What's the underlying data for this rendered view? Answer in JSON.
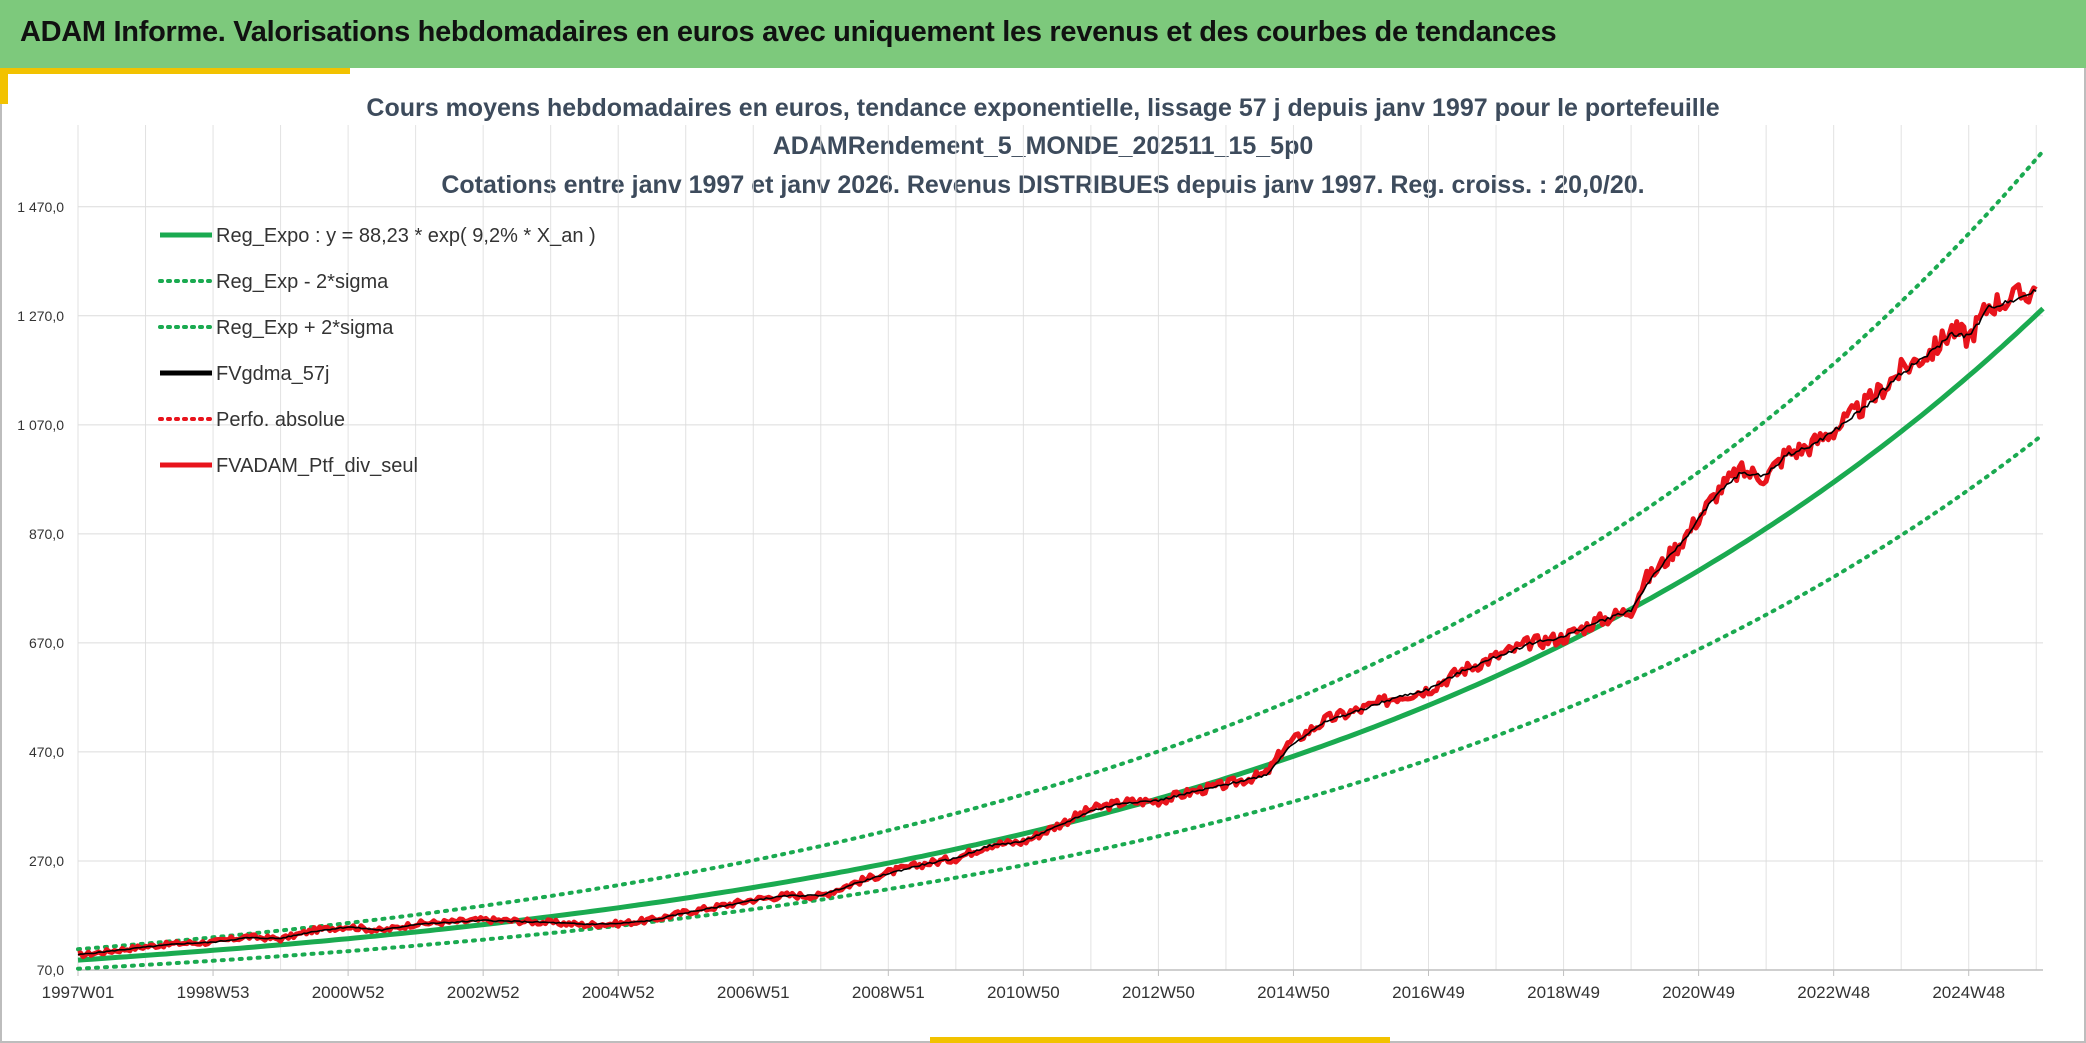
{
  "banner": {
    "title": "ADAM Informe. Valorisations hebdomadaires en euros avec uniquement les revenus et des courbes de tendances"
  },
  "colors": {
    "banner_bg": "#7dc97c",
    "accent": "#f2c200",
    "reg": "#1aaa50",
    "perf": "#e8141c",
    "gdma": "#000000",
    "title": "#3d4b5c"
  },
  "chart_data": {
    "type": "line",
    "title_lines": [
      "Cours moyens hebdomadaires en euros, tendance exponentielle, lissage 57 j depuis janv 1997 pour le portefeuille",
      "ADAMRendement_5_MONDE_202511_15_5p0",
      "Cotations entre janv 1997 et janv 2026. Revenus DISTRIBUES depuis janv 1997. Reg. croiss. : 20,0/20."
    ],
    "xlabel": "",
    "ylabel": "",
    "ylim": [
      70,
      1620
    ],
    "xlim": [
      1997.0,
      2026.1
    ],
    "y_ticks": [
      70,
      270,
      470,
      670,
      870,
      1070,
      1270,
      1470
    ],
    "y_tick_labels": [
      "70,0",
      "270,0",
      "470,0",
      "670,0",
      "870,0",
      "1 070,0",
      "1 270,0",
      "1 470,0"
    ],
    "x_ticks": [
      1997.0,
      1999.0,
      2001.0,
      2003.0,
      2005.0,
      2007.0,
      2009.0,
      2011.0,
      2013.0,
      2015.0,
      2017.0,
      2019.0,
      2021.0,
      2023.0,
      2025.0
    ],
    "x_tick_labels": [
      "1997W01",
      "1998W53",
      "2000W52",
      "2002W52",
      "2004W52",
      "2006W51",
      "2008W51",
      "2010W50",
      "2012W50",
      "2014W50",
      "2016W49",
      "2018W49",
      "2020W49",
      "2022W48",
      "2024W48"
    ],
    "legend": [
      {
        "label": "Reg_Expo : y = 88,23 * exp( 9,2% *  X_an )",
        "style": "solid",
        "color": "#1aaa50"
      },
      {
        "label": "Reg_Exp - 2*sigma",
        "style": "dotted",
        "color": "#1aaa50"
      },
      {
        "label": "Reg_Exp + 2*sigma",
        "style": "dotted",
        "color": "#1aaa50"
      },
      {
        "label": "FVgdma_57j",
        "style": "solid",
        "color": "#000000"
      },
      {
        "label": "Perfo. absolue",
        "style": "dotted",
        "color": "#e8141c"
      },
      {
        "label": "FVADAM_Ptf_div_seul",
        "style": "solid",
        "color": "#e8141c"
      }
    ],
    "regression": {
      "a": 88.23,
      "rate": 0.092
    },
    "band": {
      "lower_factor": 0.82,
      "upper_factor": 1.225
    },
    "series": [
      {
        "name": "FVADAM_Ptf_div_seul",
        "x": [
          1997.0,
          1998.0,
          1998.5,
          1999.0,
          1999.5,
          2000.0,
          2000.5,
          2001.0,
          2001.5,
          2002.0,
          2002.5,
          2003.0,
          2003.5,
          2004.0,
          2004.5,
          2005.0,
          2005.5,
          2006.0,
          2006.5,
          2007.0,
          2007.5,
          2008.0,
          2008.5,
          2009.0,
          2009.5,
          2010.0,
          2010.5,
          2011.0,
          2011.5,
          2012.0,
          2012.5,
          2013.0,
          2013.5,
          2014.0,
          2014.6,
          2014.85,
          2014.95,
          2015.5,
          2016.0,
          2016.5,
          2017.0,
          2017.5,
          2018.0,
          2018.5,
          2019.0,
          2019.5,
          2020.0,
          2020.2,
          2020.3,
          2020.5,
          2020.8,
          2021.0,
          2021.3,
          2021.6,
          2022.0,
          2022.3,
          2022.6,
          2023.0,
          2023.5,
          2024.0,
          2024.5,
          2024.75,
          2025.0,
          2025.3,
          2025.7,
          2026.0
        ],
        "y": [
          97,
          113,
          119,
          121,
          131,
          127,
          143,
          150,
          142,
          155,
          158,
          162,
          160,
          157,
          153,
          155,
          162,
          176,
          187,
          199,
          207,
          206,
          230,
          249,
          264,
          275,
          300,
          305,
          335,
          365,
          378,
          380,
          397,
          410,
          430,
          475,
          487,
          530,
          548,
          570,
          585,
          620,
          645,
          670,
          680,
          710,
          730,
          785,
          795,
          820,
          865,
          900,
          950,
          985,
          975,
          1018,
          1028,
          1060,
          1110,
          1170,
          1210,
          1245,
          1230,
          1290,
          1305,
          1318
        ]
      },
      {
        "name": "FVgdma_57j",
        "x": [
          1997.0,
          1998.0,
          1998.5,
          1999.0,
          1999.5,
          2000.0,
          2000.5,
          2001.0,
          2001.5,
          2002.0,
          2002.5,
          2003.0,
          2003.5,
          2004.0,
          2004.5,
          2005.0,
          2005.5,
          2006.0,
          2006.5,
          2007.0,
          2007.5,
          2008.0,
          2008.5,
          2009.0,
          2009.5,
          2010.0,
          2010.5,
          2011.0,
          2011.5,
          2012.0,
          2012.5,
          2013.0,
          2013.5,
          2014.0,
          2014.6,
          2014.85,
          2014.95,
          2015.5,
          2016.0,
          2016.5,
          2017.0,
          2017.5,
          2018.0,
          2018.5,
          2019.0,
          2019.5,
          2020.0,
          2020.2,
          2020.3,
          2020.5,
          2020.8,
          2021.0,
          2021.3,
          2021.6,
          2022.0,
          2022.3,
          2022.6,
          2023.0,
          2023.5,
          2024.0,
          2024.5,
          2024.75,
          2025.0,
          2025.3,
          2025.7,
          2026.0
        ],
        "y": [
          98,
          112,
          118,
          121,
          129,
          128,
          141,
          149,
          143,
          154,
          157,
          161,
          159,
          157,
          154,
          155,
          161,
          175,
          186,
          198,
          206,
          207,
          228,
          247,
          263,
          275,
          298,
          306,
          333,
          362,
          377,
          381,
          396,
          410,
          428,
          465,
          482,
          527,
          547,
          569,
          585,
          618,
          644,
          669,
          681,
          708,
          730,
          770,
          790,
          818,
          862,
          898,
          945,
          980,
          978,
          1015,
          1027,
          1058,
          1106,
          1165,
          1208,
          1238,
          1232,
          1285,
          1302,
          1315
        ]
      }
    ]
  }
}
